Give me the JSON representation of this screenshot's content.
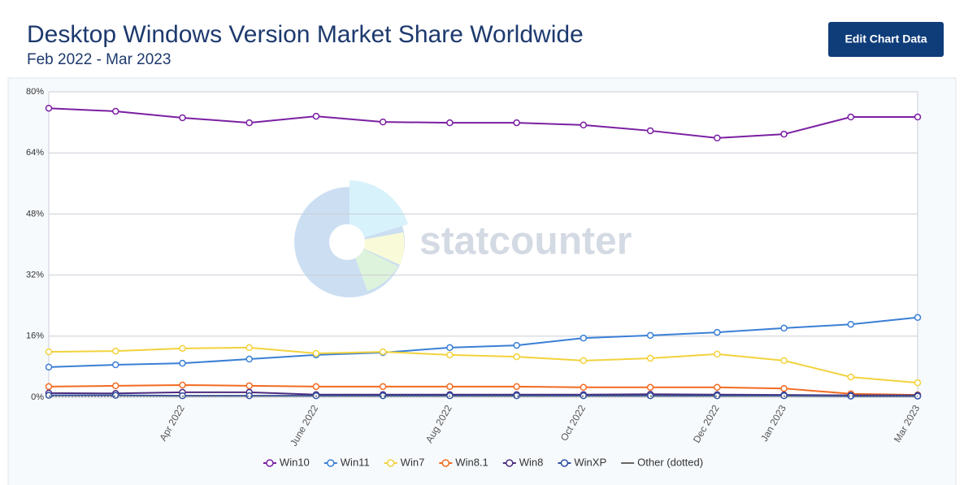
{
  "chart_data": {
    "type": "line",
    "title": "Desktop Windows Version Market Share Worldwide",
    "subtitle": "Feb 2022 - Mar 2023",
    "button": "Edit Chart Data",
    "watermark": "statcounter",
    "categories": [
      null,
      null,
      "Apr 2022",
      null,
      "June 2022",
      null,
      "Aug 2022",
      null,
      "Oct 2022",
      null,
      "Dec 2022",
      "Jan 2023",
      null,
      "Mar 2023"
    ],
    "ylim": [
      0,
      80
    ],
    "yticks": [
      {
        "value": 0,
        "label": "0%"
      },
      {
        "value": 16,
        "label": "16%"
      },
      {
        "value": 32,
        "label": "32%"
      },
      {
        "value": 48,
        "label": "48%"
      },
      {
        "value": 64,
        "label": "64%"
      },
      {
        "value": 80,
        "label": "80%"
      }
    ],
    "grid": true,
    "legend": "bottom",
    "series": [
      {
        "name": "Win10",
        "color": "#7b1fa2",
        "values": [
          75.7,
          74.9,
          73.2,
          71.9,
          73.6,
          72.1,
          71.9,
          71.9,
          71.3,
          69.8,
          67.9,
          68.9,
          73.4,
          73.4
        ]
      },
      {
        "name": "Win11",
        "color": "#3a7fd5",
        "values": [
          7.9,
          8.5,
          8.9,
          10.0,
          11.1,
          11.7,
          13.0,
          13.6,
          15.5,
          16.2,
          17.0,
          18.1,
          19.1,
          20.9
        ]
      },
      {
        "name": "Win7",
        "color": "#f2d23c",
        "values": [
          11.9,
          12.1,
          12.8,
          13.0,
          11.5,
          11.9,
          11.1,
          10.6,
          9.6,
          10.2,
          11.3,
          9.6,
          5.3,
          3.8
        ]
      },
      {
        "name": "Win8.1",
        "color": "#f26b21",
        "values": [
          2.8,
          3.0,
          3.2,
          3.0,
          2.8,
          2.8,
          2.8,
          2.8,
          2.6,
          2.6,
          2.6,
          2.3,
          0.9,
          0.6
        ]
      },
      {
        "name": "Win8",
        "color": "#4b2c7e",
        "values": [
          1.1,
          1.0,
          1.3,
          1.3,
          0.7,
          0.7,
          0.7,
          0.7,
          0.7,
          0.8,
          0.7,
          0.6,
          0.5,
          0.5
        ]
      },
      {
        "name": "WinXP",
        "color": "#2e4fa3",
        "values": [
          0.5,
          0.5,
          0.4,
          0.4,
          0.4,
          0.4,
          0.4,
          0.4,
          0.4,
          0.4,
          0.4,
          0.4,
          0.3,
          0.3
        ]
      },
      {
        "name": "Other (dotted)",
        "color": "#666666",
        "line_style": "dotted",
        "values": [
          0.3,
          0.3,
          0.3,
          0.3,
          0.3,
          0.3,
          0.3,
          0.3,
          0.3,
          0.3,
          0.3,
          0.3,
          0.3,
          0.3
        ]
      }
    ]
  }
}
